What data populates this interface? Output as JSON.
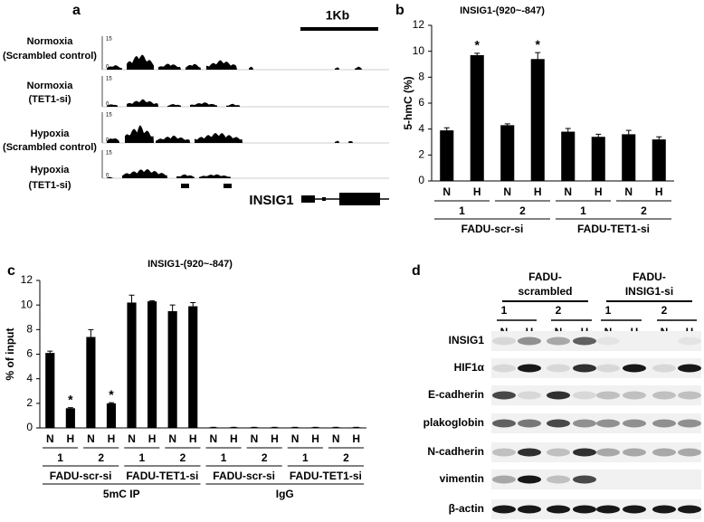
{
  "chart_data": [
    {
      "type": "bar",
      "panel": "b",
      "title": "INSIG1-(920~-847)",
      "y_label": "5-hmC (%)",
      "categories": [
        "N",
        "H",
        "N",
        "H",
        "N",
        "H",
        "N",
        "H"
      ],
      "series": [
        {
          "color": "#000000",
          "values": [
            3.9,
            9.7,
            4.3,
            9.4,
            3.8,
            3.4,
            3.6,
            3.2
          ],
          "errors": [
            0.2,
            0.15,
            0.1,
            0.5,
            0.25,
            0.2,
            0.3,
            0.2
          ]
        }
      ],
      "annotations": [
        null,
        "*",
        null,
        "*",
        null,
        null,
        null,
        null
      ],
      "group_levels": [
        [
          "1",
          "2",
          "1",
          "2"
        ],
        [
          "FADU-scr-si",
          "FADU-TET1-si"
        ]
      ],
      "ylim": [
        0,
        12
      ],
      "yticks": [
        0,
        2,
        4,
        6,
        8,
        10,
        12
      ]
    },
    {
      "type": "bar",
      "panel": "c",
      "title": "INSIG1-(920~-847)",
      "y_label": "% of input",
      "categories": [
        "N",
        "H",
        "N",
        "H",
        "N",
        "H",
        "N",
        "H",
        "N",
        "H",
        "N",
        "H",
        "N",
        "H",
        "N",
        "H"
      ],
      "series": [
        {
          "color": "#000000",
          "values": [
            6.1,
            1.6,
            7.4,
            2.0,
            10.2,
            10.3,
            9.5,
            9.9,
            0.05,
            0.05,
            0.05,
            0.05,
            0.05,
            0.05,
            0.05,
            0.05
          ],
          "errors": [
            0.15,
            0.05,
            0.6,
            0.05,
            0.6,
            0.05,
            0.5,
            0.3,
            0,
            0,
            0,
            0,
            0,
            0,
            0,
            0
          ]
        }
      ],
      "annotations": [
        null,
        "*",
        null,
        "*",
        null,
        null,
        null,
        null,
        null,
        null,
        null,
        null,
        null,
        null,
        null,
        null
      ],
      "group_levels": [
        [
          "1",
          "2",
          "1",
          "2",
          "1",
          "2",
          "1",
          "2"
        ],
        [
          "FADU-scr-si",
          "FADU-TET1-si",
          "FADU-scr-si",
          "FADU-TET1-si"
        ],
        [
          "5mC IP",
          "IgG"
        ]
      ],
      "ylim": [
        0,
        12
      ],
      "yticks": [
        0,
        2,
        4,
        6,
        8,
        10,
        12
      ]
    }
  ],
  "panel_a": {
    "letter": "a",
    "scale_bar": "1Kb",
    "gene": "INSIG1",
    "tracks": [
      {
        "label": [
          "Normoxia",
          "(Scrambled control)"
        ],
        "scale": [
          "15",
          "0"
        ]
      },
      {
        "label": [
          "Normoxia",
          "(TET1-si)"
        ],
        "scale": [
          "15",
          "0"
        ]
      },
      {
        "label": [
          "Hypoxia",
          "(Scrambled control)"
        ],
        "scale": [
          "15",
          "0"
        ]
      },
      {
        "label": [
          "Hypoxia",
          "(TET1-si)"
        ],
        "scale": [
          "15",
          "0"
        ]
      }
    ]
  },
  "panel_b": {
    "letter": "b"
  },
  "panel_c": {
    "letter": "c"
  },
  "panel_d": {
    "letter": "d",
    "groups": [
      {
        "name": [
          "FADU-",
          "scrambled"
        ],
        "replicates": [
          "1",
          "2"
        ]
      },
      {
        "name": [
          "FADU-",
          "INSIG1-si"
        ],
        "replicates": [
          "1",
          "2"
        ]
      }
    ],
    "lanes": [
      "N",
      "H",
      "N",
      "H",
      "N",
      "H",
      "N",
      "H"
    ],
    "proteins": [
      "INSIG1",
      "HIF1α",
      "E-cadherin",
      "plakoglobin",
      "N-cadherin",
      "vimentin",
      "β-actin"
    ]
  }
}
